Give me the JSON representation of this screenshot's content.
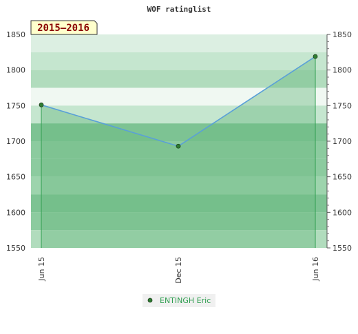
{
  "chart_data": {
    "type": "line",
    "title": "WOF ratinglist",
    "period_label": "2015–2016",
    "x_ticks": [
      "Jun 15",
      "Dec 15",
      "Jun 16"
    ],
    "ylim": [
      1550,
      1850
    ],
    "y_ticks": [
      1550,
      1600,
      1650,
      1700,
      1750,
      1800,
      1850
    ],
    "grid": true,
    "legend_position": "bottom",
    "series": [
      {
        "name": "ENTINGH Eric",
        "color": "#5aa0d8",
        "marker_color": "#2e7d32",
        "points": [
          {
            "x": "Jun 15",
            "y": 1751
          },
          {
            "x": "Dec 15",
            "y": 1693
          },
          {
            "x": "Jun 16",
            "y": 1819
          }
        ]
      }
    ],
    "colors": {
      "band_colors": [
        "#f0f8f2",
        "#dcefe2",
        "#c5e6cf",
        "#b1dcbd",
        "#9dd4ad",
        "#8ccb9f",
        "#7dc393"
      ],
      "drop_line": "#2e9e4f",
      "fill": "#6dbb82"
    }
  }
}
